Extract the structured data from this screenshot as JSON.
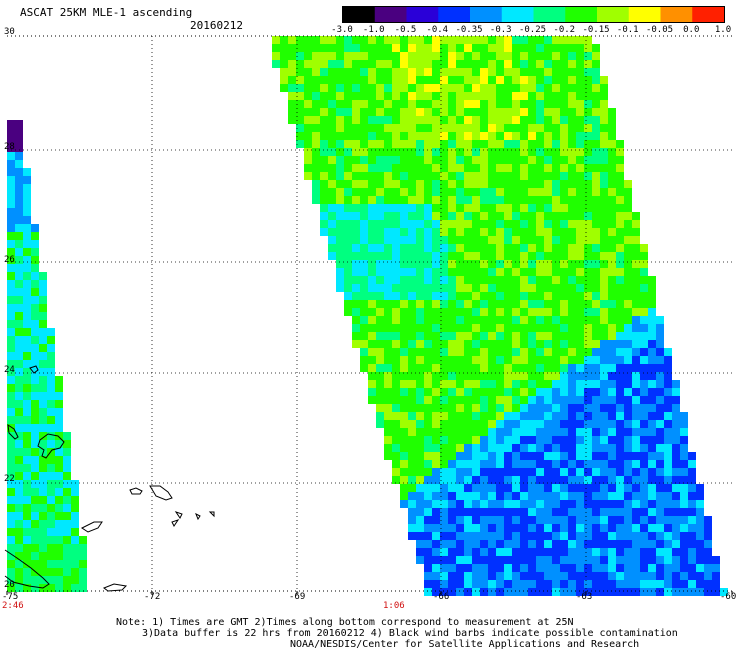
{
  "header": {
    "title": "ASCAT 25KM MLE-1 ascending",
    "date": "20160212"
  },
  "colorbar": {
    "labels": [
      "-3.0",
      "-1.0",
      "-0.5",
      "-0.4",
      "-0.35",
      "-0.3",
      "-0.25",
      "-0.2",
      "-0.15",
      "-0.1",
      "-0.05",
      "0.0",
      "1.0"
    ],
    "colors": [
      "#000000",
      "#4a0080",
      "#2a00d8",
      "#0030ff",
      "#0090ff",
      "#00e8ff",
      "#00ff80",
      "#20ff00",
      "#a0ff00",
      "#ffff00",
      "#ff9000",
      "#ff2000"
    ]
  },
  "map": {
    "lat_labels": [
      "30",
      "28",
      "26",
      "24",
      "22",
      "20"
    ],
    "lon_labels": [
      "-75",
      "-72",
      "-69",
      "-66",
      "-63",
      "-60"
    ],
    "time_labels": [
      "2:46",
      "1:06"
    ]
  },
  "notes": {
    "line1": "Note: 1) Times are GMT 2)Times along bottom correspond to measurement at 25N",
    "line2": "3)Data buffer is 22 hrs from 20160212 4) Black wind barbs indicate possible contamination",
    "line3": "NOAA/NESDIS/Center for Satellite Applications and Research"
  }
}
